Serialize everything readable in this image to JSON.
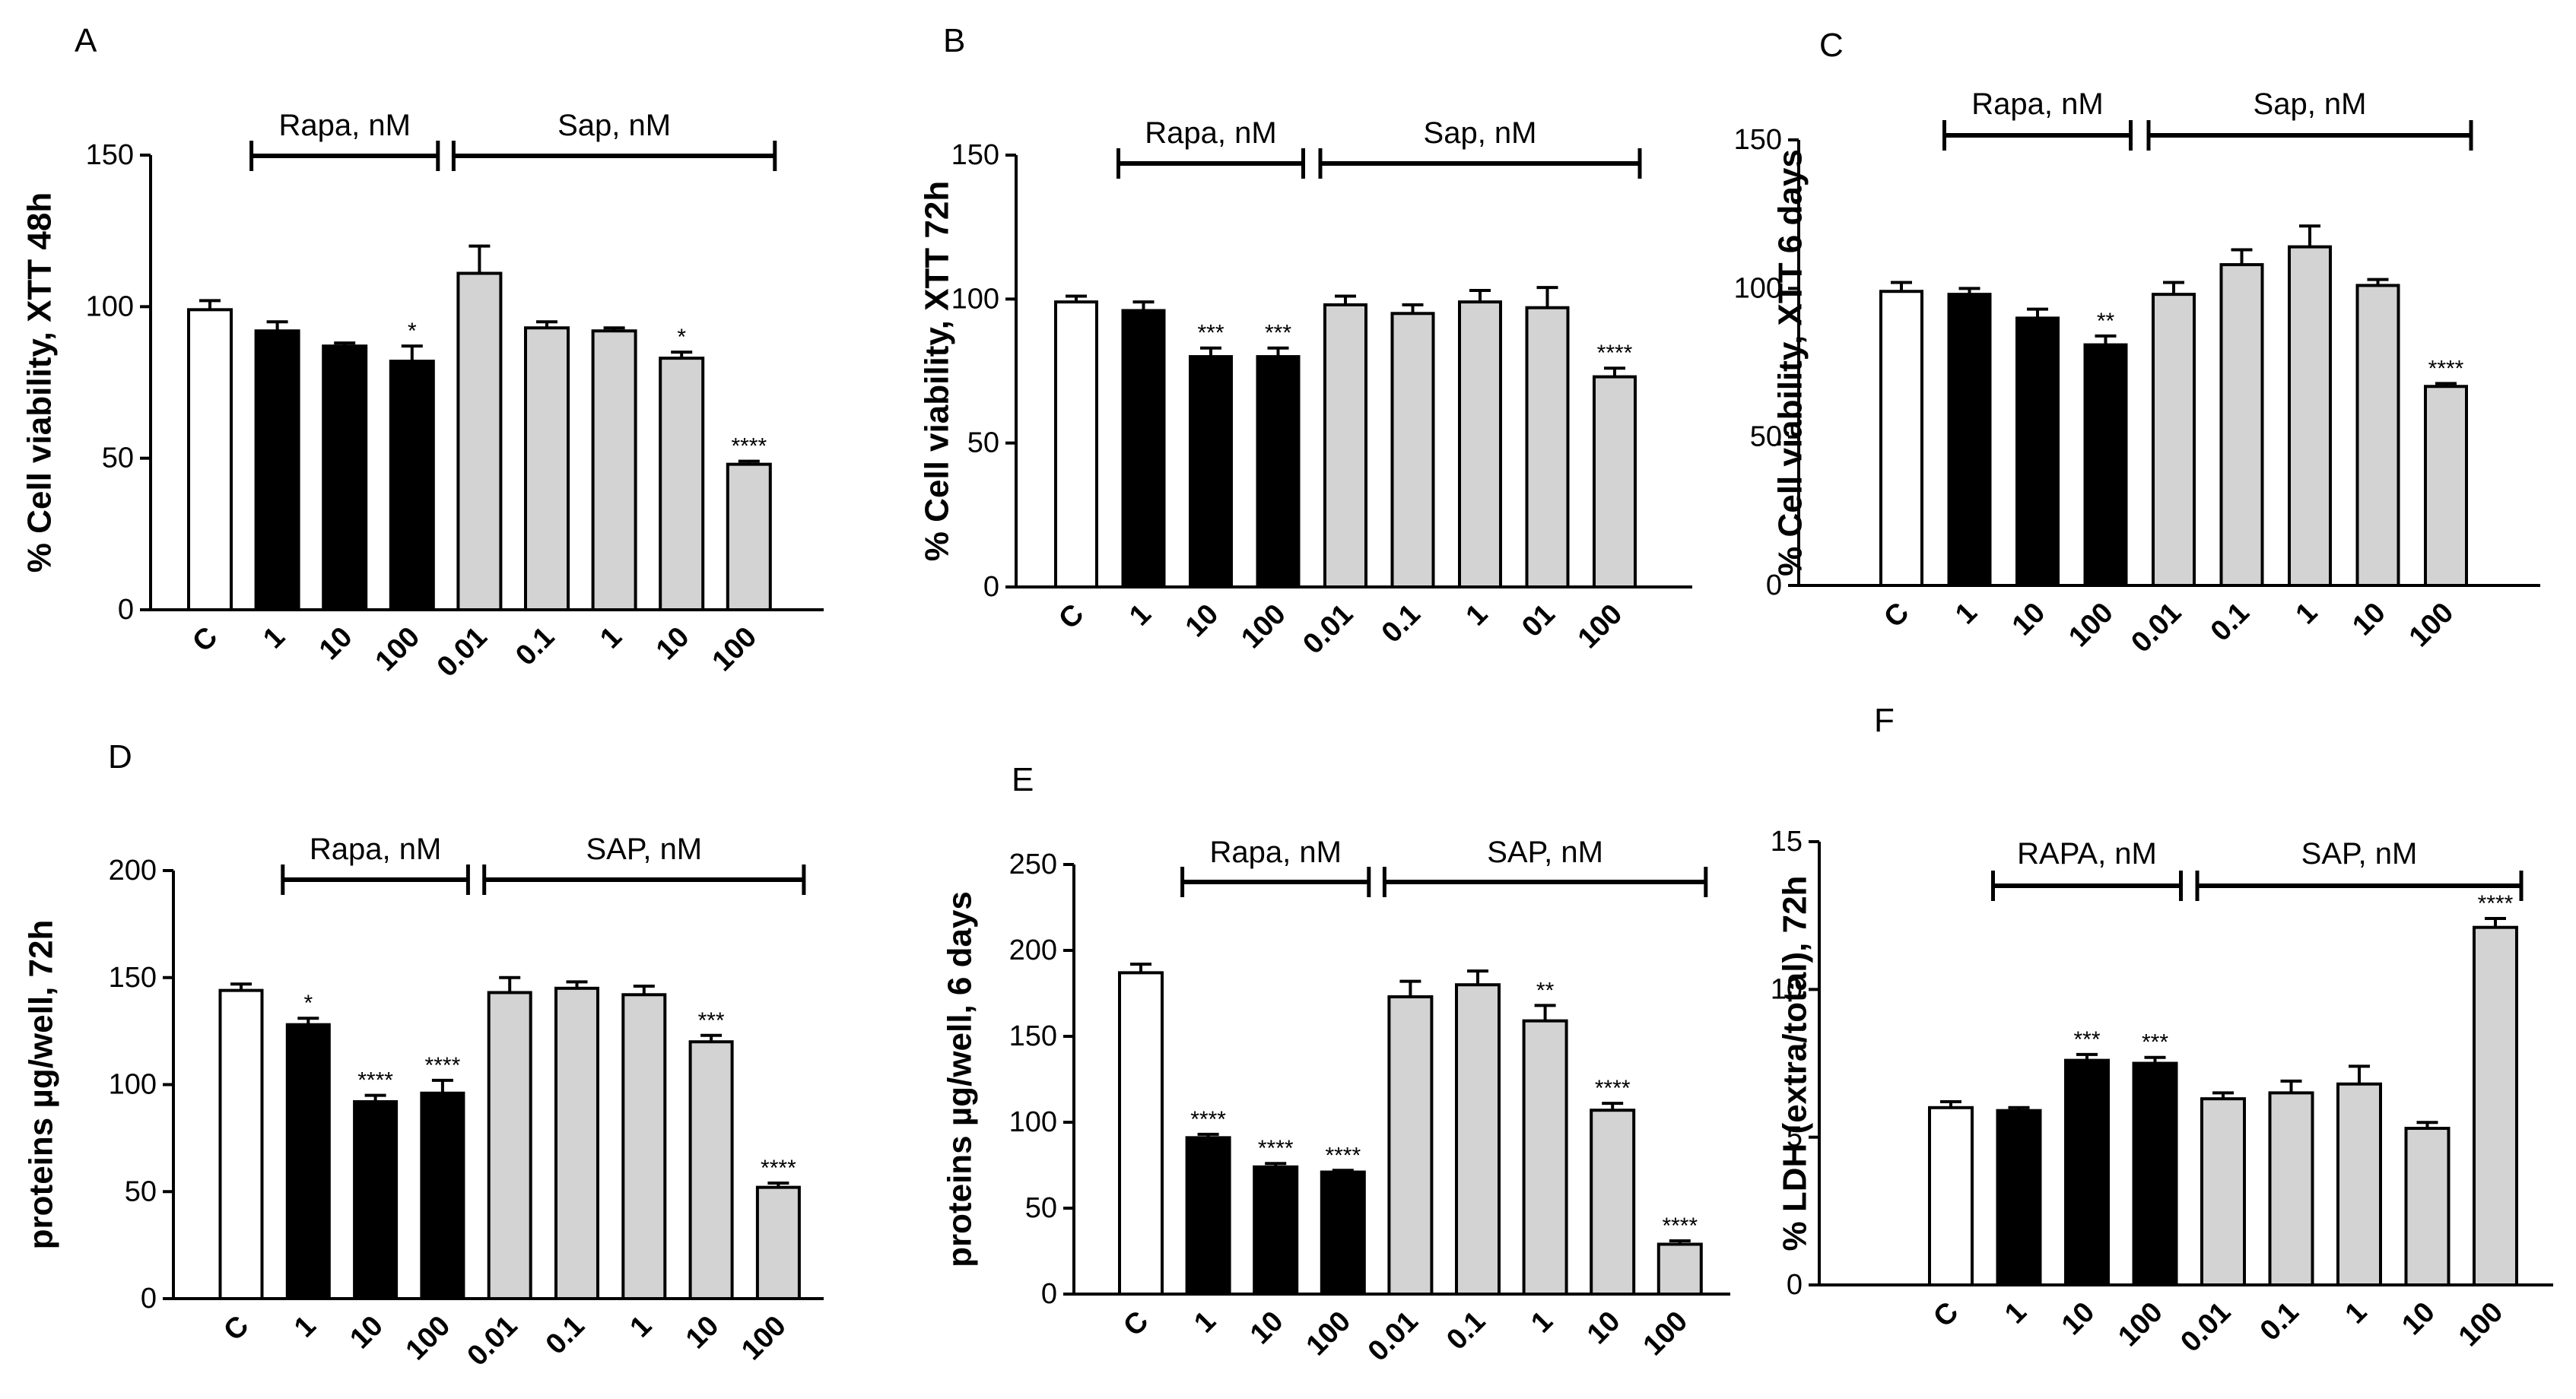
{
  "figure": {
    "background": "#ffffff"
  },
  "colors": {
    "control": "#ffffff",
    "rapa": "#000000",
    "sap": "#d3d3d3",
    "stroke": "#000000"
  },
  "chart_data": [
    {
      "panel": "A",
      "type": "bar",
      "ylabel": "% Cell viability, XTT 48h",
      "ylim": [
        0,
        150
      ],
      "yticks": [
        0,
        50,
        100,
        150
      ],
      "categories": [
        "C",
        "1",
        "10",
        "100",
        "0.01",
        "0.1",
        "1",
        "10",
        "100"
      ],
      "groups": [
        "control",
        "rapa",
        "rapa",
        "rapa",
        "sap",
        "sap",
        "sap",
        "sap",
        "sap"
      ],
      "values": [
        99,
        92,
        87,
        82,
        111,
        93,
        92,
        83,
        48
      ],
      "errors": [
        3,
        3,
        1,
        5,
        9,
        2,
        1,
        2,
        1
      ],
      "significance": [
        "",
        "",
        "",
        "*",
        "",
        "",
        "",
        "*",
        "****"
      ],
      "brackets": [
        {
          "label": "Rapa, nM",
          "from": 1,
          "to": 3
        },
        {
          "label": "Sap, nM",
          "from": 4,
          "to": 8
        }
      ]
    },
    {
      "panel": "B",
      "type": "bar",
      "ylabel": "% Cell viability, XTT 72h",
      "ylim": [
        0,
        150
      ],
      "yticks": [
        0,
        50,
        100,
        150
      ],
      "categories": [
        "C",
        "1",
        "10",
        "100",
        "0.01",
        "0.1",
        "1",
        "01",
        "100"
      ],
      "groups": [
        "control",
        "rapa",
        "rapa",
        "rapa",
        "sap",
        "sap",
        "sap",
        "sap",
        "sap"
      ],
      "values": [
        99,
        96,
        80,
        80,
        98,
        95,
        99,
        97,
        73
      ],
      "errors": [
        2,
        3,
        3,
        3,
        3,
        3,
        4,
        7,
        3
      ],
      "significance": [
        "",
        "",
        "***",
        "***",
        "",
        "",
        "",
        "",
        "****"
      ],
      "brackets": [
        {
          "label": "Rapa, nM",
          "from": 1,
          "to": 3
        },
        {
          "label": "Sap, nM",
          "from": 4,
          "to": 8
        }
      ]
    },
    {
      "panel": "C",
      "type": "bar",
      "ylabel": "% Cell viability, XTT 6 days",
      "ylim": [
        0,
        150
      ],
      "yticks": [
        0,
        50,
        100,
        150
      ],
      "categories": [
        "C",
        "1",
        "10",
        "100",
        "0.01",
        "0.1",
        "1",
        "10",
        "100"
      ],
      "groups": [
        "control",
        "rapa",
        "rapa",
        "rapa",
        "sap",
        "sap",
        "sap",
        "sap",
        "sap"
      ],
      "values": [
        99,
        98,
        90,
        81,
        98,
        108,
        114,
        101,
        67
      ],
      "errors": [
        3,
        2,
        3,
        3,
        4,
        5,
        7,
        2,
        1
      ],
      "significance": [
        "",
        "",
        "",
        "**",
        "",
        "",
        "",
        "",
        "****"
      ],
      "brackets": [
        {
          "label": "Rapa, nM",
          "from": 1,
          "to": 3
        },
        {
          "label": "Sap, nM",
          "from": 4,
          "to": 8
        }
      ]
    },
    {
      "panel": "D",
      "type": "bar",
      "ylabel": "proteins µg/well, 72h",
      "ylim": [
        0,
        200
      ],
      "yticks": [
        0,
        50,
        100,
        150,
        200
      ],
      "categories": [
        "C",
        "1",
        "10",
        "100",
        "0.01",
        "0.1",
        "1",
        "10",
        "100"
      ],
      "groups": [
        "control",
        "rapa",
        "rapa",
        "rapa",
        "sap",
        "sap",
        "sap",
        "sap",
        "sap"
      ],
      "values": [
        144,
        128,
        92,
        96,
        143,
        145,
        142,
        120,
        52
      ],
      "errors": [
        3,
        3,
        3,
        6,
        7,
        3,
        4,
        3,
        2
      ],
      "significance": [
        "",
        "*",
        "****",
        "****",
        "",
        "",
        "",
        "***",
        "****"
      ],
      "brackets": [
        {
          "label": "Rapa, nM",
          "from": 1,
          "to": 3
        },
        {
          "label": "SAP, nM",
          "from": 4,
          "to": 8
        }
      ]
    },
    {
      "panel": "E",
      "type": "bar",
      "ylabel": "proteins µg/well,  6 days",
      "ylim": [
        0,
        250
      ],
      "yticks": [
        0,
        50,
        100,
        150,
        200,
        250
      ],
      "categories": [
        "C",
        "1",
        "10",
        "100",
        "0.01",
        "0.1",
        "1",
        "10",
        "100"
      ],
      "groups": [
        "control",
        "rapa",
        "rapa",
        "rapa",
        "sap",
        "sap",
        "sap",
        "sap",
        "sap"
      ],
      "values": [
        187,
        91,
        74,
        71,
        173,
        180,
        159,
        107,
        29
      ],
      "errors": [
        5,
        2,
        2,
        1,
        9,
        8,
        9,
        4,
        2
      ],
      "significance": [
        "",
        "****",
        "****",
        "****",
        "",
        "",
        "**",
        "****",
        "****"
      ],
      "brackets": [
        {
          "label": "Rapa, nM",
          "from": 1,
          "to": 3
        },
        {
          "label": "SAP, nM",
          "from": 4,
          "to": 8
        }
      ]
    },
    {
      "panel": "F",
      "type": "bar",
      "ylabel": "% LDH (extra/total), 72h",
      "ylim": [
        0,
        15
      ],
      "yticks": [
        0,
        5,
        10,
        15
      ],
      "categories": [
        "C",
        "1",
        "10",
        "100",
        "0.01",
        "0.1",
        "1",
        "10",
        "100"
      ],
      "groups": [
        "control",
        "rapa",
        "rapa",
        "rapa",
        "sap",
        "sap",
        "sap",
        "sap",
        "sap"
      ],
      "values": [
        6.0,
        5.9,
        7.6,
        7.5,
        6.3,
        6.5,
        6.8,
        5.3,
        12.1
      ],
      "errors": [
        0.2,
        0.1,
        0.2,
        0.2,
        0.2,
        0.4,
        0.6,
        0.2,
        0.3
      ],
      "significance": [
        "",
        "",
        "***",
        "***",
        "",
        "",
        "",
        "",
        "****"
      ],
      "brackets": [
        {
          "label": "RAPA, nM",
          "from": 1,
          "to": 3
        },
        {
          "label": "SAP, nM",
          "from": 4,
          "to": 8
        }
      ]
    }
  ]
}
